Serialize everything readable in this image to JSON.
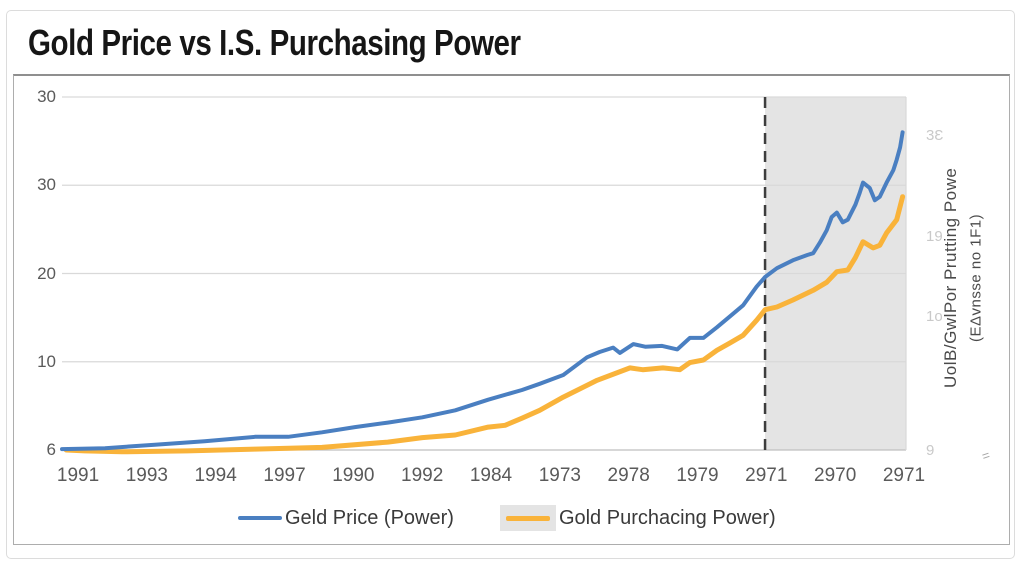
{
  "page": {
    "title": "Gold Price vs I.S. Purchasing Power"
  },
  "right_axis_title": {
    "line1": "UolB/GwlPor Prutting Powe",
    "line2": "(EΔvnsse no 1F1)"
  },
  "corner_mark": "=",
  "chart_data": {
    "type": "line",
    "title": "Gold Price vs I.S. Purchasing Power",
    "xlabel": "",
    "ylabel_right": "UolB/GwlPor Prutting Powe (EΔvnsse no 1F1)",
    "ylim": [
      0,
      40
    ],
    "grid": true,
    "legend_position": "bottom",
    "x_tick_labels": [
      "1991",
      "1993",
      "1994",
      "1997",
      "1990",
      "1992",
      "1984",
      "1973",
      "2978",
      "1979",
      "2971",
      "2970",
      "2971"
    ],
    "x_tick_start_pct": 1.9,
    "x_tick_step_pct": 8.155,
    "y_left_ticks": [
      {
        "label": "30",
        "value": 40
      },
      {
        "label": "30",
        "value": 30
      },
      {
        "label": "20",
        "value": 20
      },
      {
        "label": "10",
        "value": 10
      },
      {
        "label": "6",
        "value": 0
      }
    ],
    "y_right_ticks": [
      {
        "label": "3Ɛ",
        "value": 35.5
      },
      {
        "label": "19",
        "value": 24
      },
      {
        "label": "1o",
        "value": 15
      },
      {
        "label": "9",
        "value": -0.2
      }
    ],
    "dashed_line_x": 83.3,
    "shaded_region": {
      "from": 83.3,
      "to": 100,
      "color": "#e4e4e4"
    },
    "colors": {
      "grid": "#d9d9d9",
      "axis": "#bfbfbf",
      "dashed": "#3d3d3d",
      "tick_text": "#5a5a5a",
      "right_tick_text": "#c9c9c9",
      "blue": "#4a7fc1",
      "orange": "#f9b33a"
    },
    "series": [
      {
        "name": "Geld Price (Power)",
        "color": "#4a7fc1",
        "width": 4,
        "points": [
          [
            0,
            0.1
          ],
          [
            5.1,
            0.2
          ],
          [
            11,
            0.6
          ],
          [
            16.9,
            1
          ],
          [
            22.9,
            1.5
          ],
          [
            26.8,
            1.5
          ],
          [
            30.8,
            2
          ],
          [
            34.7,
            2.6
          ],
          [
            38.6,
            3.1
          ],
          [
            42.7,
            3.7
          ],
          [
            46.6,
            4.5
          ],
          [
            50.5,
            5.7
          ],
          [
            54.5,
            6.8
          ],
          [
            56.6,
            7.5
          ],
          [
            59.4,
            8.5
          ],
          [
            62.2,
            10.5
          ],
          [
            63.7,
            11.1
          ],
          [
            65.3,
            11.6
          ],
          [
            66.1,
            11
          ],
          [
            67.7,
            12
          ],
          [
            69.1,
            11.7
          ],
          [
            71.1,
            11.8
          ],
          [
            72.9,
            11.4
          ],
          [
            74.4,
            12.7
          ],
          [
            76,
            12.7
          ],
          [
            77.6,
            13.9
          ],
          [
            79.1,
            15.1
          ],
          [
            80.7,
            16.4
          ],
          [
            82.3,
            18.5
          ],
          [
            83.3,
            19.6
          ],
          [
            84.7,
            20.6
          ],
          [
            86.6,
            21.5
          ],
          [
            88.3,
            22.1
          ],
          [
            89,
            22.3
          ],
          [
            89.8,
            23.5
          ],
          [
            90.6,
            24.9
          ],
          [
            91.2,
            26.4
          ],
          [
            91.8,
            26.9
          ],
          [
            92.5,
            25.8
          ],
          [
            93.1,
            26.1
          ],
          [
            94,
            27.8
          ],
          [
            94.5,
            29.1
          ],
          [
            94.9,
            30.3
          ],
          [
            95.7,
            29.7
          ],
          [
            96.3,
            28.3
          ],
          [
            96.9,
            28.7
          ],
          [
            97.7,
            30.3
          ],
          [
            98.5,
            31.7
          ],
          [
            98.9,
            32.9
          ],
          [
            99.3,
            34.3
          ],
          [
            99.6,
            36
          ]
        ]
      },
      {
        "name": "Gold Purchacing Power)",
        "color": "#f9b33a",
        "width": 5,
        "points": [
          [
            0.5,
            0
          ],
          [
            2.7,
            -0.1
          ],
          [
            7.1,
            -0.2
          ],
          [
            14.9,
            -0.1
          ],
          [
            22.9,
            0.1
          ],
          [
            30.8,
            0.3
          ],
          [
            38.6,
            0.9
          ],
          [
            42.7,
            1.4
          ],
          [
            46.6,
            1.7
          ],
          [
            50.5,
            2.6
          ],
          [
            52.5,
            2.8
          ],
          [
            54.5,
            3.6
          ],
          [
            56.6,
            4.5
          ],
          [
            59.4,
            6
          ],
          [
            63.4,
            7.9
          ],
          [
            67.3,
            9.3
          ],
          [
            68.8,
            9.1
          ],
          [
            71.2,
            9.3
          ],
          [
            73.2,
            9.1
          ],
          [
            74.4,
            9.9
          ],
          [
            76,
            10.2
          ],
          [
            77.6,
            11.3
          ],
          [
            79.1,
            12.1
          ],
          [
            80.7,
            13
          ],
          [
            82.3,
            14.7
          ],
          [
            83.3,
            15.9
          ],
          [
            84.7,
            16.2
          ],
          [
            86.6,
            17
          ],
          [
            89,
            18.1
          ],
          [
            90.6,
            19
          ],
          [
            91.8,
            20.2
          ],
          [
            93.1,
            20.4
          ],
          [
            94,
            21.8
          ],
          [
            94.9,
            23.6
          ],
          [
            96.1,
            22.9
          ],
          [
            96.9,
            23.2
          ],
          [
            97.7,
            24.6
          ],
          [
            98.9,
            26.1
          ],
          [
            99.6,
            28.7
          ]
        ]
      }
    ]
  }
}
